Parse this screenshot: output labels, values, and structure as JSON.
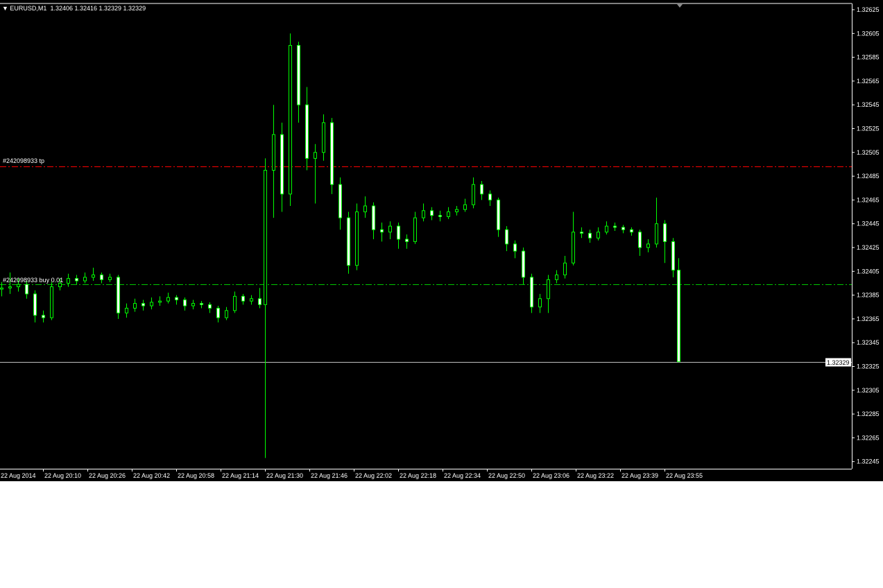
{
  "header": {
    "symbol": "EURUSD,M1",
    "ohlc": "1.32406 1.32416 1.32329 1.32329"
  },
  "order_lines": [
    {
      "label": "#242098933 tp",
      "price": 1.32493,
      "color": "#ff0000",
      "style": "dash-dot"
    },
    {
      "label": "#242098933 buy 0.01",
      "price": 1.32394,
      "color": "#00c800",
      "style": "dash-dot"
    }
  ],
  "bid_line": {
    "price": 1.32329,
    "label": "1.32329",
    "color": "#c0c0c0"
  },
  "colors": {
    "background": "#000000",
    "bull_body": "#000000",
    "bear_body": "#ffffff",
    "candle_outline": "#00ff00",
    "axis": "#ffffff"
  },
  "chart_data": {
    "type": "candlestick",
    "title": "EURUSD,M1",
    "ylim": [
      1.32235,
      1.32633
    ],
    "y_ticks": [
      "1.32625",
      "1.32605",
      "1.32585",
      "1.32565",
      "1.32545",
      "1.32525",
      "1.32505",
      "1.32485",
      "1.32465",
      "1.32445",
      "1.32425",
      "1.32405",
      "1.32385",
      "1.32365",
      "1.32345",
      "1.32325",
      "1.32305",
      "1.32285",
      "1.32265",
      "1.32245"
    ],
    "x_ticks": [
      "22 Aug 2014",
      "22 Aug 20:10",
      "22 Aug 20:26",
      "22 Aug 20:42",
      "22 Aug 20:58",
      "22 Aug 21:14",
      "22 Aug 21:30",
      "22 Aug 21:46",
      "22 Aug 22:02",
      "22 Aug 22:18",
      "22 Aug 22:34",
      "22 Aug 22:50",
      "22 Aug 23:06",
      "22 Aug 23:22",
      "22 Aug 23:39",
      "22 Aug 23:55"
    ],
    "candles_columns": [
      "time",
      "open",
      "high",
      "low",
      "close"
    ],
    "candles": [
      [
        "19:55",
        1.3239,
        1.32396,
        1.32384,
        1.32391
      ],
      [
        "19:58",
        1.32391,
        1.32404,
        1.32386,
        1.32392
      ],
      [
        "20:01",
        1.32392,
        1.32399,
        1.32388,
        1.32394
      ],
      [
        "20:04",
        1.32394,
        1.32397,
        1.32382,
        1.32386
      ],
      [
        "20:07",
        1.32386,
        1.32389,
        1.32362,
        1.32368
      ],
      [
        "20:10",
        1.32368,
        1.32372,
        1.32362,
        1.32366
      ],
      [
        "20:13",
        1.32366,
        1.32396,
        1.32364,
        1.32392
      ],
      [
        "20:16",
        1.32392,
        1.32399,
        1.32389,
        1.32395
      ],
      [
        "20:19",
        1.32395,
        1.32403,
        1.32392,
        1.32399
      ],
      [
        "20:22",
        1.32399,
        1.32402,
        1.32394,
        1.32397
      ],
      [
        "20:25",
        1.32397,
        1.32404,
        1.32395,
        1.324
      ],
      [
        "20:28",
        1.324,
        1.32408,
        1.32397,
        1.32402
      ],
      [
        "20:31",
        1.32402,
        1.32404,
        1.32395,
        1.32398
      ],
      [
        "20:34",
        1.32398,
        1.32403,
        1.32396,
        1.324
      ],
      [
        "20:37",
        1.324,
        1.32402,
        1.32365,
        1.3237
      ],
      [
        "20:40",
        1.3237,
        1.32378,
        1.32366,
        1.32374
      ],
      [
        "20:43",
        1.32374,
        1.32382,
        1.32371,
        1.32378
      ],
      [
        "20:46",
        1.32378,
        1.32381,
        1.32372,
        1.32376
      ],
      [
        "20:49",
        1.32376,
        1.32383,
        1.32373,
        1.32379
      ],
      [
        "20:52",
        1.32379,
        1.32384,
        1.32376,
        1.3238
      ],
      [
        "20:55",
        1.3238,
        1.32387,
        1.32378,
        1.32383
      ],
      [
        "20:58",
        1.32383,
        1.32385,
        1.32377,
        1.32381
      ],
      [
        "21:01",
        1.32381,
        1.32383,
        1.32372,
        1.32376
      ],
      [
        "21:04",
        1.32376,
        1.32381,
        1.32373,
        1.32378
      ],
      [
        "21:07",
        1.32378,
        1.3238,
        1.32374,
        1.32377
      ],
      [
        "21:10",
        1.32377,
        1.32379,
        1.3237,
        1.32374
      ],
      [
        "21:13",
        1.32374,
        1.32376,
        1.32362,
        1.32366
      ],
      [
        "21:16",
        1.32366,
        1.32375,
        1.32364,
        1.32372
      ],
      [
        "21:19",
        1.32372,
        1.32388,
        1.3237,
        1.32384
      ],
      [
        "21:22",
        1.32384,
        1.32386,
        1.32377,
        1.3238
      ],
      [
        "21:25",
        1.3238,
        1.32385,
        1.32377,
        1.32382
      ],
      [
        "21:28",
        1.32382,
        1.32391,
        1.32374,
        1.32377
      ],
      [
        "21:30",
        1.32377,
        1.325,
        1.32248,
        1.3249
      ],
      [
        "21:33",
        1.3249,
        1.32545,
        1.3245,
        1.3252
      ],
      [
        "21:36",
        1.3252,
        1.3253,
        1.32455,
        1.3247
      ],
      [
        "21:39",
        1.3247,
        1.32605,
        1.3246,
        1.32595
      ],
      [
        "21:42",
        1.32595,
        1.32598,
        1.3253,
        1.32545
      ],
      [
        "21:45",
        1.32545,
        1.3256,
        1.3249,
        1.325
      ],
      [
        "21:48",
        1.325,
        1.32512,
        1.32462,
        1.32505
      ],
      [
        "21:51",
        1.32505,
        1.32537,
        1.32498,
        1.3253
      ],
      [
        "21:54",
        1.3253,
        1.32534,
        1.3247,
        1.32478
      ],
      [
        "21:57",
        1.32478,
        1.32484,
        1.3244,
        1.3245
      ],
      [
        "22:00",
        1.3245,
        1.32455,
        1.32403,
        1.3241
      ],
      [
        "22:03",
        1.3241,
        1.32462,
        1.32406,
        1.32455
      ],
      [
        "22:06",
        1.32455,
        1.32468,
        1.3245,
        1.3246
      ],
      [
        "22:09",
        1.3246,
        1.32463,
        1.32432,
        1.3244
      ],
      [
        "22:12",
        1.3244,
        1.32446,
        1.3243,
        1.32438
      ],
      [
        "22:15",
        1.32438,
        1.32447,
        1.32432,
        1.32443
      ],
      [
        "22:18",
        1.32443,
        1.32446,
        1.32424,
        1.32432
      ],
      [
        "22:21",
        1.32432,
        1.32436,
        1.32424,
        1.3243
      ],
      [
        "22:24",
        1.3243,
        1.32455,
        1.32428,
        1.3245
      ],
      [
        "22:27",
        1.3245,
        1.32462,
        1.32447,
        1.32456
      ],
      [
        "22:30",
        1.32456,
        1.32459,
        1.32448,
        1.32452
      ],
      [
        "22:33",
        1.32452,
        1.32456,
        1.32447,
        1.32451
      ],
      [
        "22:36",
        1.32451,
        1.32459,
        1.32449,
        1.32455
      ],
      [
        "22:39",
        1.32455,
        1.3246,
        1.32452,
        1.32457
      ],
      [
        "22:42",
        1.32457,
        1.32466,
        1.32455,
        1.32461
      ],
      [
        "22:45",
        1.32461,
        1.32484,
        1.32458,
        1.32478
      ],
      [
        "22:48",
        1.32478,
        1.32481,
        1.32465,
        1.3247
      ],
      [
        "22:51",
        1.3247,
        1.32473,
        1.3246,
        1.32465
      ],
      [
        "22:54",
        1.32465,
        1.32467,
        1.32434,
        1.3244
      ],
      [
        "22:57",
        1.3244,
        1.32443,
        1.32422,
        1.32428
      ],
      [
        "23:00",
        1.32428,
        1.32431,
        1.32416,
        1.32422
      ],
      [
        "23:03",
        1.32422,
        1.32425,
        1.32394,
        1.324
      ],
      [
        "23:06",
        1.324,
        1.32403,
        1.3237,
        1.32375
      ],
      [
        "23:09",
        1.32375,
        1.32386,
        1.3237,
        1.32382
      ],
      [
        "23:12",
        1.32382,
        1.32402,
        1.3237,
        1.32398
      ],
      [
        "23:15",
        1.32398,
        1.32406,
        1.32395,
        1.32402
      ],
      [
        "23:18",
        1.32402,
        1.32418,
        1.32399,
        1.32412
      ],
      [
        "23:21",
        1.32412,
        1.32455,
        1.3241,
        1.32438
      ],
      [
        "23:24",
        1.32438,
        1.32442,
        1.32433,
        1.32437
      ],
      [
        "23:27",
        1.32437,
        1.3244,
        1.32429,
        1.32433
      ],
      [
        "23:30",
        1.32433,
        1.32442,
        1.32431,
        1.32438
      ],
      [
        "23:33",
        1.32438,
        1.32447,
        1.32436,
        1.32443
      ],
      [
        "23:36",
        1.32443,
        1.32446,
        1.32439,
        1.32442
      ],
      [
        "23:39",
        1.32442,
        1.32444,
        1.32437,
        1.3244
      ],
      [
        "23:42",
        1.3244,
        1.32442,
        1.32435,
        1.32438
      ],
      [
        "23:45",
        1.32438,
        1.3244,
        1.32418,
        1.32425
      ],
      [
        "23:48",
        1.32425,
        1.32432,
        1.32421,
        1.32428
      ],
      [
        "23:51",
        1.32428,
        1.32467,
        1.32425,
        1.32445
      ],
      [
        "23:54",
        1.32445,
        1.32448,
        1.32412,
        1.3243
      ],
      [
        "23:57",
        1.3243,
        1.32433,
        1.324,
        1.32406
      ],
      [
        "23:59",
        1.32406,
        1.32416,
        1.32329,
        1.32329
      ]
    ]
  }
}
